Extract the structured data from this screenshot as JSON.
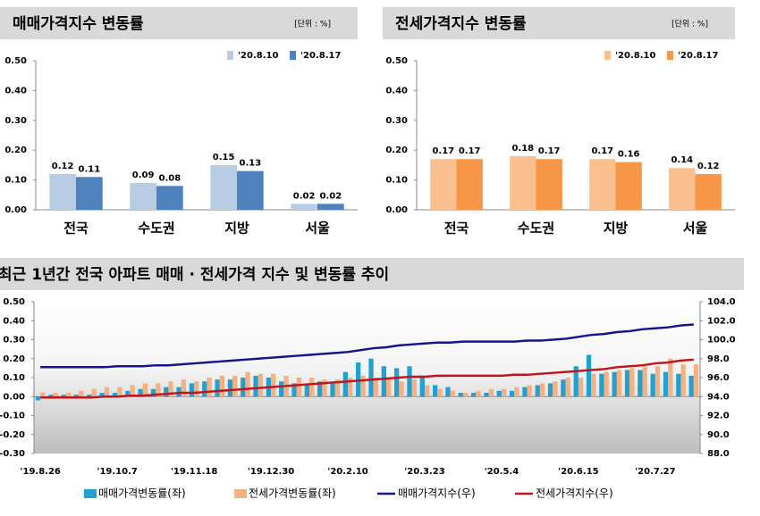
{
  "chart_data": [
    {
      "type": "bar",
      "title": "매매가격지수 변동률",
      "unit": "[단위 : %]",
      "categories": [
        "전국",
        "수도권",
        "지방",
        "서울"
      ],
      "series": [
        {
          "name": "'20.8.10",
          "color": "#b8cce4",
          "values": [
            0.12,
            0.09,
            0.15,
            0.02
          ]
        },
        {
          "name": "'20.8.17",
          "color": "#4f81bd",
          "values": [
            0.11,
            0.08,
            0.13,
            0.02
          ]
        }
      ],
      "ylim": [
        0,
        0.5
      ],
      "yticks": [
        {
          "value": 0,
          "label": "0.00"
        },
        {
          "value": 0.1,
          "label": "0.10"
        },
        {
          "value": 0.2,
          "label": "0.20"
        },
        {
          "value": 0.3,
          "label": "0.30"
        },
        {
          "value": 0.4,
          "label": "0.40"
        },
        {
          "value": 0.5,
          "label": "0.50"
        }
      ],
      "data_labels": true,
      "legend": "top-right"
    },
    {
      "type": "bar",
      "title": "전세가격지수 변동률",
      "unit": "[단위 : %]",
      "categories": [
        "전국",
        "수도권",
        "지방",
        "서울"
      ],
      "series": [
        {
          "name": "'20.8.10",
          "color": "#fac090",
          "values": [
            0.17,
            0.18,
            0.17,
            0.14
          ]
        },
        {
          "name": "'20.8.17",
          "color": "#f79646",
          "values": [
            0.17,
            0.17,
            0.16,
            0.12
          ]
        }
      ],
      "ylim": [
        0,
        0.5
      ],
      "yticks": [
        {
          "value": 0,
          "label": "0.00"
        },
        {
          "value": 0.1,
          "label": "0.10"
        },
        {
          "value": 0.2,
          "label": "0.20"
        },
        {
          "value": 0.3,
          "label": "0.30"
        },
        {
          "value": 0.4,
          "label": "0.40"
        },
        {
          "value": 0.5,
          "label": "0.50"
        }
      ],
      "data_labels": true,
      "legend": "top-right"
    },
    {
      "type": "bar-line",
      "title": "최근 1년간 전국 아파트 매매 · 전세가격 지수 및 변동률 추이",
      "categories": [
        "'19.8.26",
        null,
        null,
        null,
        null,
        null,
        "'19.10.7",
        null,
        null,
        null,
        null,
        null,
        "'19.11.18",
        null,
        null,
        null,
        null,
        null,
        "'19.12.30",
        null,
        null,
        null,
        null,
        null,
        "'20.2.10",
        null,
        null,
        null,
        null,
        null,
        "'20.3.23",
        null,
        null,
        null,
        null,
        null,
        "'20.5.4",
        null,
        null,
        null,
        null,
        null,
        "'20.6.15",
        null,
        null,
        null,
        null,
        null,
        "'20.7.27",
        null,
        null,
        null
      ],
      "series": [
        {
          "name": "매매가격변동률(좌)",
          "color": "#23a0cf",
          "values": [
            -0.02,
            0.01,
            0.01,
            0.01,
            0.01,
            0.02,
            0.02,
            0.03,
            0.04,
            0.04,
            0.05,
            0.05,
            0.07,
            0.08,
            0.09,
            0.09,
            0.1,
            0.11,
            0.1,
            0.08,
            0.07,
            0.07,
            0.08,
            0.08,
            0.13,
            0.18,
            0.2,
            0.16,
            0.15,
            0.16,
            0.11,
            0.06,
            0.05,
            0.02,
            0.02,
            0.02,
            0.03,
            0.03,
            0.05,
            0.06,
            0.07,
            0.09,
            0.16,
            0.22,
            0.12,
            0.13,
            0.14,
            0.14,
            0.12,
            0.13,
            0.12,
            0.11
          ]
        },
        {
          "name": "전세가격변동률(좌)",
          "color": "#f4b183",
          "values": [
            0.02,
            0.02,
            0.02,
            0.03,
            0.04,
            0.05,
            0.05,
            0.06,
            0.07,
            0.07,
            0.08,
            0.09,
            0.08,
            0.1,
            0.11,
            0.11,
            0.13,
            0.12,
            0.12,
            0.11,
            0.1,
            0.1,
            0.09,
            0.09,
            0.1,
            0.11,
            0.1,
            0.1,
            0.08,
            0.09,
            0.06,
            0.04,
            0.03,
            0.02,
            0.03,
            0.04,
            0.04,
            0.05,
            0.06,
            0.07,
            0.08,
            0.1,
            0.1,
            0.12,
            0.13,
            0.14,
            0.15,
            0.16,
            0.16,
            0.2,
            0.17,
            0.17
          ]
        },
        {
          "name": "매매가격지수(우)",
          "color": "#14148c",
          "axis": "y2",
          "values": [
            97.1,
            97.1,
            97.1,
            97.1,
            97.1,
            97.1,
            97.2,
            97.2,
            97.2,
            97.3,
            97.3,
            97.4,
            97.5,
            97.6,
            97.7,
            97.8,
            97.9,
            98.0,
            98.1,
            98.2,
            98.3,
            98.4,
            98.5,
            98.6,
            98.7,
            98.9,
            99.1,
            99.2,
            99.4,
            99.5,
            99.6,
            99.7,
            99.7,
            99.8,
            99.8,
            99.8,
            99.8,
            99.8,
            99.9,
            99.9,
            100.0,
            100.1,
            100.3,
            100.5,
            100.6,
            100.8,
            100.9,
            101.1,
            101.2,
            101.3,
            101.5,
            101.6
          ]
        },
        {
          "name": "전세가격지수(우)",
          "color": "#c0161b",
          "axis": "y2",
          "values": [
            93.9,
            93.9,
            93.9,
            93.9,
            93.9,
            94.0,
            94.0,
            94.1,
            94.1,
            94.2,
            94.3,
            94.4,
            94.4,
            94.5,
            94.6,
            94.7,
            94.8,
            94.9,
            95.0,
            95.1,
            95.2,
            95.3,
            95.4,
            95.5,
            95.6,
            95.7,
            95.8,
            95.9,
            96.0,
            96.1,
            96.1,
            96.2,
            96.2,
            96.2,
            96.2,
            96.2,
            96.2,
            96.3,
            96.3,
            96.4,
            96.5,
            96.6,
            96.7,
            96.8,
            96.9,
            97.1,
            97.2,
            97.3,
            97.5,
            97.6,
            97.8,
            97.9
          ]
        }
      ],
      "ylim": [
        -0.3,
        0.5
      ],
      "yticks": [
        {
          "value": -0.3,
          "label": "-0.30"
        },
        {
          "value": -0.2,
          "label": "-0.20"
        },
        {
          "value": -0.1,
          "label": "-0.10"
        },
        {
          "value": 0,
          "label": "0.00"
        },
        {
          "value": 0.1,
          "label": "0.10"
        },
        {
          "value": 0.2,
          "label": "0.20"
        },
        {
          "value": 0.3,
          "label": "0.30"
        },
        {
          "value": 0.4,
          "label": "0.40"
        },
        {
          "value": 0.5,
          "label": "0.50"
        }
      ],
      "y2lim": [
        88,
        104
      ],
      "y2ticks": [
        {
          "value": 88,
          "label": "88.0"
        },
        {
          "value": 90,
          "label": "90.0"
        },
        {
          "value": 92,
          "label": "92.0"
        },
        {
          "value": 94,
          "label": "94.0"
        },
        {
          "value": 96,
          "label": "96.0"
        },
        {
          "value": 98,
          "label": "98.0"
        },
        {
          "value": 100,
          "label": "100.0"
        },
        {
          "value": 102,
          "label": "102.0"
        },
        {
          "value": 104,
          "label": "104.0"
        }
      ],
      "legend": "bottom"
    }
  ]
}
